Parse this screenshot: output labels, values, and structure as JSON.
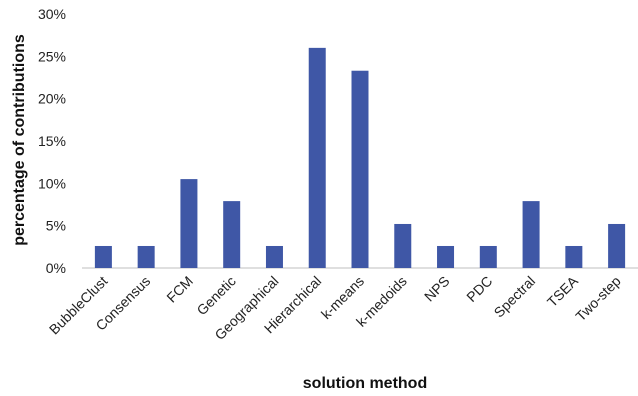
{
  "chart_data": {
    "type": "bar",
    "xlabel": "solution method",
    "ylabel": "percentage of contributions",
    "categories": [
      "BubbleClust",
      "Consensus",
      "FCM",
      "Genetic",
      "Geographical",
      "Hierarchical",
      "k-means",
      "k-medoids",
      "NPS",
      "PDC",
      "Spectral",
      "TSEA",
      "Two-step"
    ],
    "values": [
      2.6,
      2.6,
      10.5,
      7.9,
      2.6,
      26.0,
      23.3,
      5.2,
      2.6,
      2.6,
      7.9,
      2.6,
      5.2
    ],
    "ylim": [
      0,
      30
    ],
    "yticks": [
      "0%",
      "5%",
      "10%",
      "15%",
      "20%",
      "25%",
      "30%"
    ],
    "grid": false,
    "legend": "none",
    "colors": {
      "bar": "#3f57a6",
      "text": "#222222",
      "axis": "#bfbfbf"
    }
  }
}
